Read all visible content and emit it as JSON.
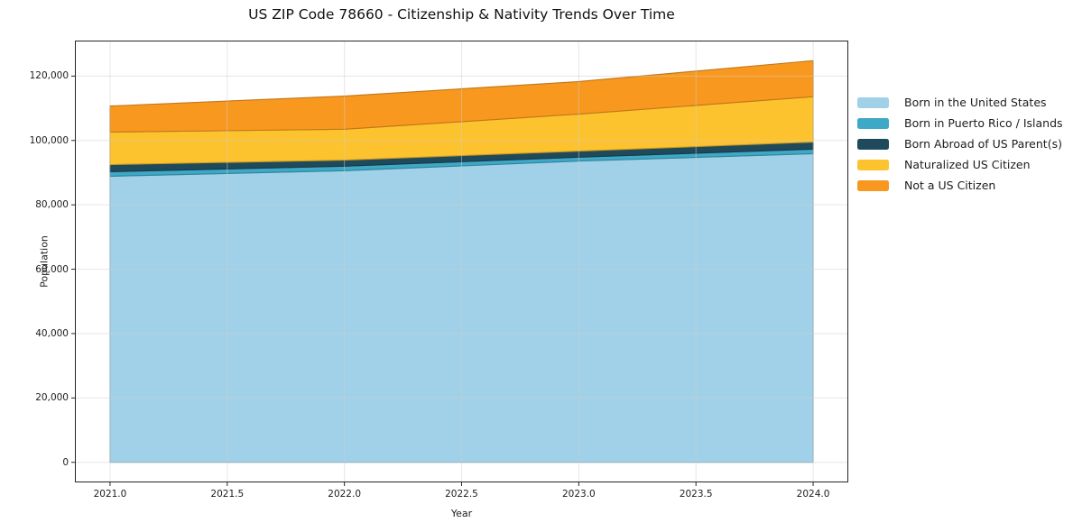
{
  "title": "US ZIP Code 78660 - Citizenship & Nativity Trends Over Time",
  "chart_data": {
    "type": "area",
    "stacked": true,
    "title": "US ZIP Code 78660 - Citizenship & Nativity Trends Over Time",
    "xlabel": "Year",
    "ylabel": "Population",
    "x": [
      2021,
      2022,
      2023,
      2024
    ],
    "series": [
      {
        "name": "Born in the United States",
        "color": "#a1d1e8",
        "values": [
          88900,
          90600,
          93600,
          95900
        ]
      },
      {
        "name": "Born in Puerto Rico / Islands",
        "color": "#3da9c6",
        "values": [
          1400,
          1400,
          1200,
          1400
        ]
      },
      {
        "name": "Born Abroad of US Parent(s)",
        "color": "#1f4a5c",
        "values": [
          2200,
          1900,
          1900,
          2200
        ]
      },
      {
        "name": "Naturalized US Citizen",
        "color": "#fdc32f",
        "values": [
          10100,
          9600,
          11500,
          14100
        ]
      },
      {
        "name": "Not a US Citizen",
        "color": "#f8981f",
        "values": [
          8100,
          10300,
          10100,
          11200
        ]
      }
    ],
    "stacked_totals": [
      110700,
      113800,
      118300,
      124800
    ],
    "xlim": [
      2020.85,
      2024.15
    ],
    "ylim": [
      -6240,
      131040
    ],
    "xticks": [
      {
        "value": 2021.0,
        "label": "2021.0"
      },
      {
        "value": 2021.5,
        "label": "2021.5"
      },
      {
        "value": 2022.0,
        "label": "2022.0"
      },
      {
        "value": 2022.5,
        "label": "2022.5"
      },
      {
        "value": 2023.0,
        "label": "2023.0"
      },
      {
        "value": 2023.5,
        "label": "2023.5"
      },
      {
        "value": 2024.0,
        "label": "2024.0"
      }
    ],
    "yticks": [
      {
        "value": 0,
        "label": "0"
      },
      {
        "value": 20000,
        "label": "20,000"
      },
      {
        "value": 40000,
        "label": "40,000"
      },
      {
        "value": 60000,
        "label": "60,000"
      },
      {
        "value": 80000,
        "label": "80,000"
      },
      {
        "value": 100000,
        "label": "100,000"
      },
      {
        "value": 120000,
        "label": "120,000"
      }
    ],
    "grid": true,
    "grid_color": "#cdcdcd",
    "spine_color": "#262626",
    "legend_position": "right of axes"
  }
}
